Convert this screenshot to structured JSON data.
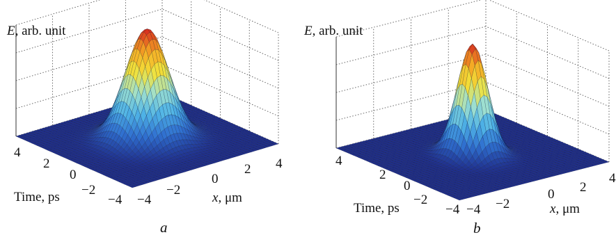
{
  "chart_data": [
    {
      "type": "surface",
      "panel_label": "a",
      "zlabel_var": "E",
      "zlabel_rest": ", arb. unit",
      "ylabel": "Time, ps",
      "xlabel_var": "x",
      "xlabel_rest": ", μm",
      "x_range": [
        -4,
        4
      ],
      "time_range": [
        -4,
        4
      ],
      "x_ticks": [
        "−4",
        "−2",
        "0",
        "2",
        "4"
      ],
      "time_ticks": [
        "4",
        "2",
        "0",
        "−2",
        "−4"
      ],
      "peak": {
        "x": 0,
        "time": 0,
        "value": 1.0
      },
      "width_x": 0.95,
      "width_time": 0.95,
      "colormap": [
        "#1f2e8c",
        "#2f6fcf",
        "#4fb3e6",
        "#9fe0cf",
        "#f2e23a",
        "#f5a623",
        "#d7261e"
      ]
    },
    {
      "type": "surface",
      "panel_label": "b",
      "zlabel_var": "E",
      "zlabel_rest": ", arb. unit",
      "ylabel": "Time, ps",
      "xlabel_var": "x",
      "xlabel_rest": ", μm",
      "x_range": [
        -4,
        4
      ],
      "time_range": [
        -4,
        4
      ],
      "x_ticks": [
        "−4",
        "−2",
        "0",
        "2",
        "4"
      ],
      "time_ticks": [
        "4",
        "2",
        "0",
        "−2",
        "−4"
      ],
      "peak": {
        "x": 0,
        "time": 0,
        "value": 1.0
      },
      "width_x": 0.6,
      "width_time": 0.7,
      "colormap": [
        "#1f2e8c",
        "#2f6fcf",
        "#4fb3e6",
        "#9fe0cf",
        "#f2e23a",
        "#f5a623",
        "#d7261e"
      ]
    }
  ]
}
